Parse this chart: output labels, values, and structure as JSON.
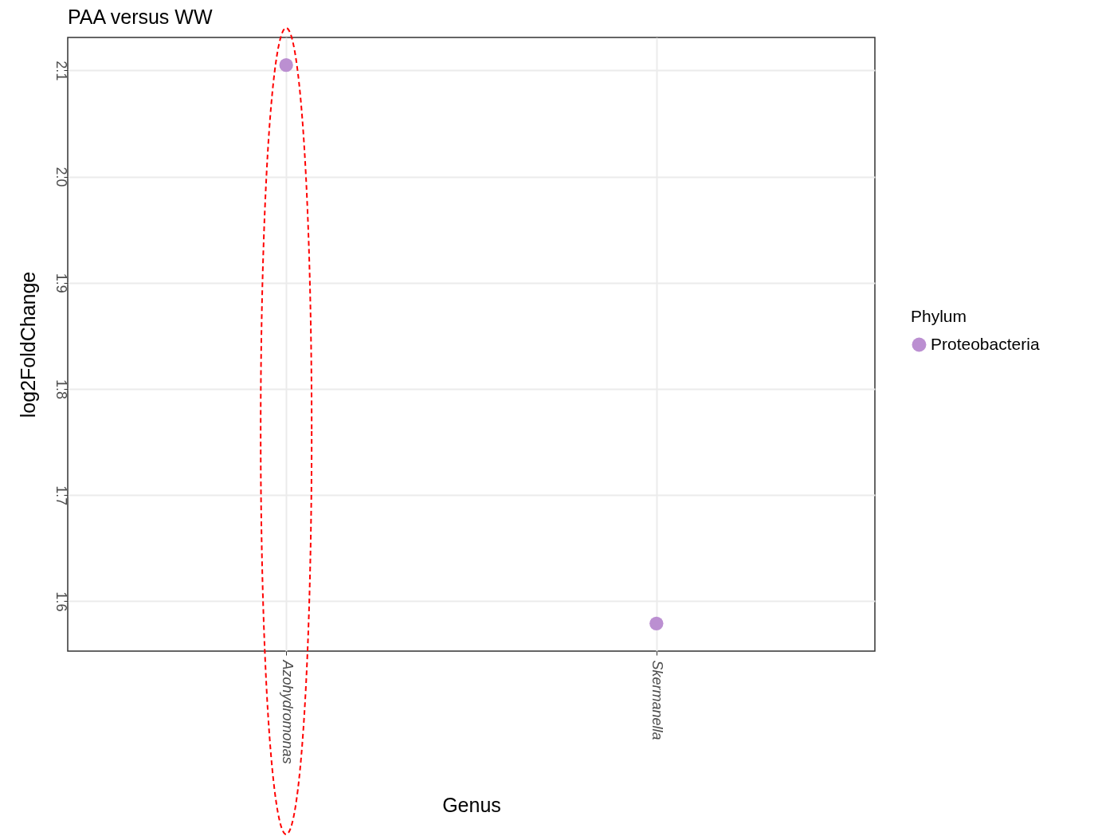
{
  "chart_data": {
    "type": "scatter",
    "title": "PAA versus WW",
    "xlabel": "Genus",
    "ylabel": "log2FoldChange",
    "legend_title": "Phylum",
    "categories": [
      "Azohydromonas",
      "Skermanella"
    ],
    "series": [
      {
        "name": "Proteobacteria",
        "color": "#bb8fd1",
        "values": [
          2.105,
          1.579
        ]
      }
    ],
    "ylim": [
      1.553,
      2.131
    ],
    "yticks": [
      1.6,
      1.7,
      1.8,
      1.9,
      {
        "value": 2.0,
        "label": "2.0"
      },
      2.1
    ],
    "grid": true,
    "legend": "right",
    "marker": "circle"
  }
}
